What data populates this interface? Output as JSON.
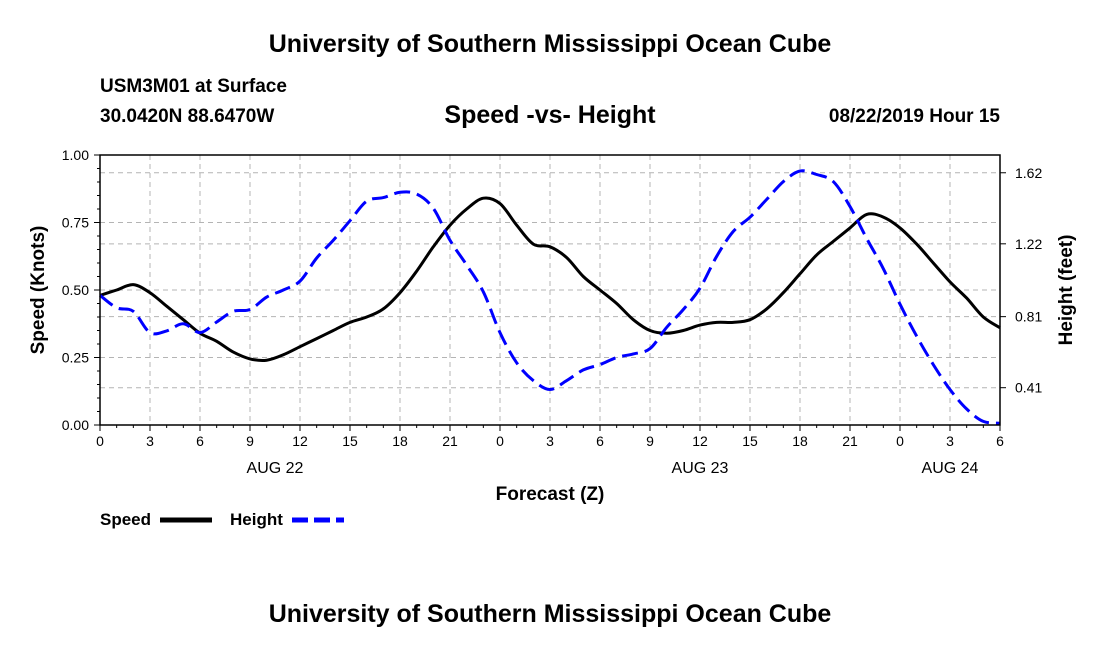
{
  "header": {
    "title": "University of Southern Mississippi Ocean Cube",
    "station": "USM3M01 at Surface",
    "coordinates": "30.0420N 88.6470W",
    "subtitle": "Speed -vs- Height",
    "datetime": "08/22/2019 Hour 15"
  },
  "footer": {
    "title": "University of Southern Mississippi Ocean Cube"
  },
  "chart_data": {
    "type": "line",
    "title": "Speed -vs- Height",
    "xlabel": "Forecast (Z)",
    "ylabel_left": "Speed (Knots)",
    "ylabel_right": "Height (feet)",
    "x_unit": "hours from AUG 22 00Z",
    "xlim": [
      0,
      54
    ],
    "ylim_left": [
      0,
      1
    ],
    "ylim_right": [
      0.2,
      1.72
    ],
    "grid": true,
    "x_ticks": [
      {
        "x": 0,
        "label": "0"
      },
      {
        "x": 3,
        "label": "3"
      },
      {
        "x": 6,
        "label": "6"
      },
      {
        "x": 9,
        "label": "9"
      },
      {
        "x": 12,
        "label": "12"
      },
      {
        "x": 15,
        "label": "15"
      },
      {
        "x": 18,
        "label": "18"
      },
      {
        "x": 21,
        "label": "21"
      },
      {
        "x": 24,
        "label": "0"
      },
      {
        "x": 27,
        "label": "3"
      },
      {
        "x": 30,
        "label": "6"
      },
      {
        "x": 33,
        "label": "9"
      },
      {
        "x": 36,
        "label": "12"
      },
      {
        "x": 39,
        "label": "15"
      },
      {
        "x": 42,
        "label": "18"
      },
      {
        "x": 45,
        "label": "21"
      },
      {
        "x": 48,
        "label": "0"
      },
      {
        "x": 51,
        "label": "3"
      },
      {
        "x": 54,
        "label": "6"
      }
    ],
    "date_labels": [
      {
        "x": 10.5,
        "label": "AUG 22"
      },
      {
        "x": 36,
        "label": "AUG 23"
      },
      {
        "x": 51,
        "label": "AUG 24"
      }
    ],
    "y_ticks_left": [
      {
        "v": 0,
        "label": "0.00"
      },
      {
        "v": 0.25,
        "label": "0.25"
      },
      {
        "v": 0.5,
        "label": "0.50"
      },
      {
        "v": 0.75,
        "label": "0.75"
      },
      {
        "v": 1,
        "label": "1.00"
      }
    ],
    "y_ticks_right": [
      {
        "v": 0.41,
        "label": "0.41"
      },
      {
        "v": 0.81,
        "label": "0.81"
      },
      {
        "v": 1.22,
        "label": "1.22"
      },
      {
        "v": 1.62,
        "label": "1.62"
      }
    ],
    "series": [
      {
        "name": "Speed",
        "axis": "left",
        "color": "#000000",
        "style": "solid",
        "x": [
          0,
          1,
          2,
          3,
          4,
          5,
          6,
          7,
          8,
          9,
          10,
          11,
          12,
          13,
          14,
          15,
          16,
          17,
          18,
          19,
          20,
          21,
          22,
          23,
          24,
          25,
          26,
          27,
          28,
          29,
          30,
          31,
          32,
          33,
          34,
          35,
          36,
          37,
          38,
          39,
          40,
          41,
          42,
          43,
          44,
          45,
          46,
          47,
          48,
          49,
          50,
          51,
          52,
          53,
          54
        ],
        "values": [
          0.48,
          0.5,
          0.52,
          0.49,
          0.44,
          0.39,
          0.34,
          0.31,
          0.27,
          0.245,
          0.24,
          0.26,
          0.29,
          0.32,
          0.35,
          0.38,
          0.4,
          0.43,
          0.49,
          0.57,
          0.66,
          0.74,
          0.8,
          0.84,
          0.82,
          0.74,
          0.67,
          0.66,
          0.62,
          0.55,
          0.5,
          0.45,
          0.39,
          0.35,
          0.34,
          0.35,
          0.37,
          0.38,
          0.38,
          0.39,
          0.43,
          0.49,
          0.56,
          0.63,
          0.68,
          0.73,
          0.78,
          0.77,
          0.73,
          0.67,
          0.6,
          0.53,
          0.47,
          0.4,
          0.36
        ]
      },
      {
        "name": "Height",
        "axis": "right",
        "color": "#0000ff",
        "style": "dashed",
        "x": [
          0,
          1,
          2,
          3,
          4,
          5,
          6,
          7,
          8,
          9,
          10,
          11,
          12,
          13,
          14,
          15,
          16,
          17,
          18,
          19,
          20,
          21,
          22,
          23,
          24,
          25,
          26,
          27,
          28,
          29,
          30,
          31,
          32,
          33,
          34,
          35,
          36,
          37,
          38,
          39,
          40,
          41,
          42,
          43,
          44,
          45,
          46,
          47,
          48,
          49,
          50,
          51,
          52,
          53,
          54
        ],
        "values": [
          0.93,
          0.86,
          0.84,
          0.72,
          0.73,
          0.77,
          0.72,
          0.78,
          0.84,
          0.85,
          0.92,
          0.96,
          1.01,
          1.14,
          1.24,
          1.35,
          1.46,
          1.48,
          1.51,
          1.5,
          1.42,
          1.24,
          1.1,
          0.95,
          0.72,
          0.55,
          0.45,
          0.4,
          0.45,
          0.51,
          0.54,
          0.58,
          0.6,
          0.63,
          0.75,
          0.85,
          0.97,
          1.15,
          1.29,
          1.37,
          1.47,
          1.57,
          1.63,
          1.61,
          1.57,
          1.43,
          1.25,
          1.08,
          0.88,
          0.7,
          0.54,
          0.4,
          0.29,
          0.22,
          0.21
        ]
      }
    ],
    "legend": [
      {
        "label": "Speed",
        "color": "#000000",
        "style": "solid"
      },
      {
        "label": "Height",
        "color": "#0000ff",
        "style": "dashed"
      }
    ],
    "legend_position": "bottom-left"
  }
}
